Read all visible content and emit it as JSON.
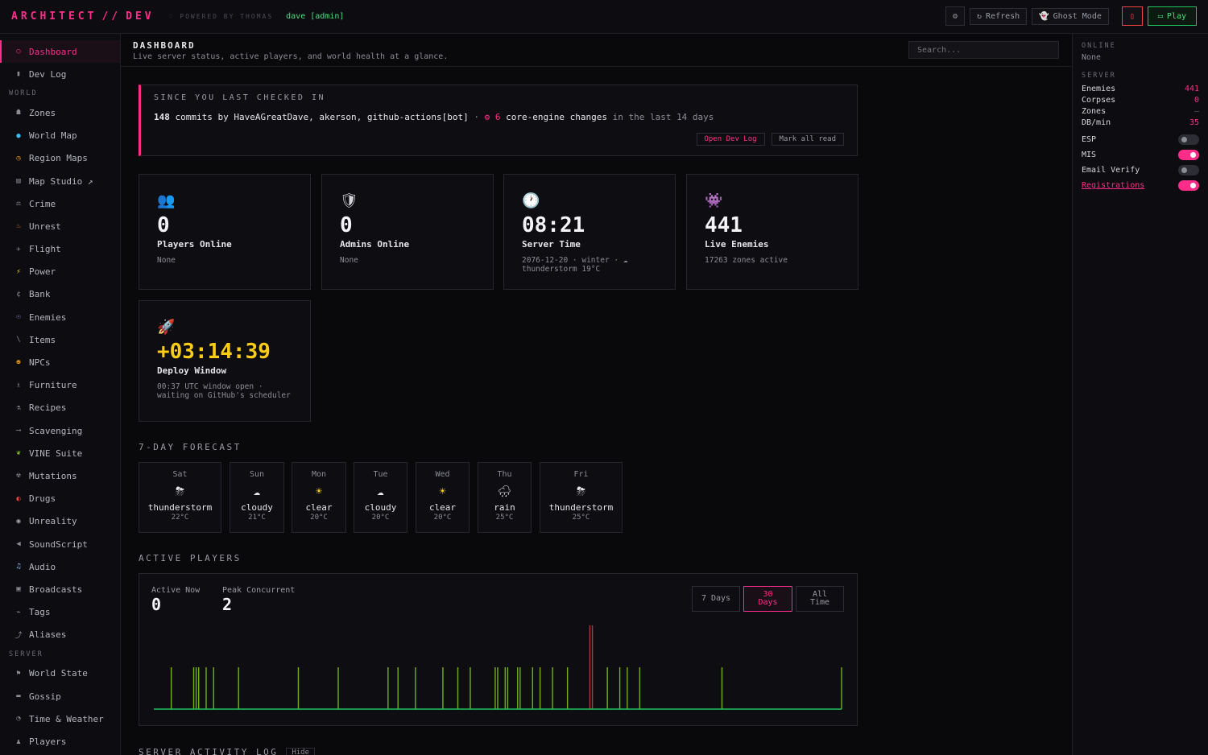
{
  "topbar": {
    "brand": "ARCHITECT",
    "brand_sep": "//",
    "brand_dev": "DEV",
    "powered": "POWERED BY THOMAS",
    "user": "dave [admin]",
    "refresh_label": "Refresh",
    "ghost_label": "Ghost Mode",
    "play_label": "Play"
  },
  "sidebar": {
    "top_items": [
      {
        "label": "Dashboard",
        "icon": "circle-icon"
      },
      {
        "label": "Dev Log",
        "icon": "book-icon"
      }
    ],
    "world_title": "WORLD",
    "world_items": [
      {
        "label": "Zones",
        "icon": "zones-icon"
      },
      {
        "label": "World Map",
        "icon": "globe-icon"
      },
      {
        "label": "Region Maps",
        "icon": "compass-icon"
      },
      {
        "label": "Map Studio ↗",
        "icon": "studio-icon"
      },
      {
        "label": "Crime",
        "icon": "crime-icon"
      },
      {
        "label": "Unrest",
        "icon": "fire-icon"
      },
      {
        "label": "Flight",
        "icon": "plane-icon"
      },
      {
        "label": "Power",
        "icon": "bolt-icon"
      },
      {
        "label": "Bank",
        "icon": "currency-icon"
      },
      {
        "label": "Enemies",
        "icon": "alien-icon"
      },
      {
        "label": "Items",
        "icon": "slash-icon"
      },
      {
        "label": "NPCs",
        "icon": "face-icon"
      },
      {
        "label": "Furniture",
        "icon": "chair-icon"
      },
      {
        "label": "Recipes",
        "icon": "recipe-icon"
      },
      {
        "label": "Scavenging",
        "icon": "arrow-icon"
      },
      {
        "label": "VINE Suite",
        "icon": "vine-icon"
      },
      {
        "label": "Mutations",
        "icon": "radiation-icon"
      },
      {
        "label": "Drugs",
        "icon": "pill-icon"
      },
      {
        "label": "Unreality",
        "icon": "orb-icon"
      },
      {
        "label": "SoundScript",
        "icon": "speaker-icon"
      },
      {
        "label": "Audio",
        "icon": "music-icon"
      },
      {
        "label": "Broadcasts",
        "icon": "radio-icon"
      },
      {
        "label": "Tags",
        "icon": "tag-icon"
      },
      {
        "label": "Aliases",
        "icon": "alias-icon"
      }
    ],
    "server_title": "SERVER",
    "server_items": [
      {
        "label": "World State",
        "icon": "flag-icon"
      },
      {
        "label": "Gossip",
        "icon": "chat-icon"
      },
      {
        "label": "Time & Weather",
        "icon": "clock-icon"
      },
      {
        "label": "Players",
        "icon": "players-icon"
      }
    ]
  },
  "header": {
    "title": "DASHBOARD",
    "subtitle": "Live server status, active players, and world health at a glance.",
    "search_placeholder": "Search..."
  },
  "since": {
    "title": "SINCE YOU LAST CHECKED IN",
    "commits": "148",
    "commits_word": "commits",
    "by": "by HaveAGreatDave, akerson, github-actions[bot]",
    "dot": "·",
    "gear": "⚙",
    "core_count": "6",
    "core_label": "core-engine changes",
    "period": "in the last 14 days",
    "open_label": "Open Dev Log",
    "mark_label": "Mark all read"
  },
  "cards": [
    {
      "icon": "👥",
      "value": "0",
      "label": "Players Online",
      "note": "None"
    },
    {
      "icon": "🛡",
      "value": "0",
      "label": "Admins Online",
      "note": "None"
    },
    {
      "icon": "🕐",
      "value": "08:21",
      "label": "Server Time",
      "note": "2076-12-20 · winter · ☁ thunderstorm 19°C"
    },
    {
      "icon": "👾",
      "value": "441",
      "label": "Live Enemies",
      "note": "17263 zones active"
    }
  ],
  "deploy": {
    "icon": "🚀",
    "value": "+03:14:39",
    "label": "Deploy Window",
    "note": "00:37 UTC window open · waiting on GitHub's scheduler"
  },
  "forecast": {
    "title": "7-DAY FORECAST",
    "days": [
      {
        "day": "Sat",
        "icon": "⛈",
        "cond": "thunderstorm",
        "temp": "22°C"
      },
      {
        "day": "Sun",
        "icon": "☁",
        "cond": "cloudy",
        "temp": "21°C"
      },
      {
        "day": "Mon",
        "icon": "☀",
        "cond": "clear",
        "temp": "20°C"
      },
      {
        "day": "Tue",
        "icon": "☁",
        "cond": "cloudy",
        "temp": "20°C"
      },
      {
        "day": "Wed",
        "icon": "☀",
        "cond": "clear",
        "temp": "20°C"
      },
      {
        "day": "Thu",
        "icon": "🌧",
        "cond": "rain",
        "temp": "25°C"
      },
      {
        "day": "Fri",
        "icon": "⛈",
        "cond": "thunderstorm",
        "temp": "25°C"
      }
    ]
  },
  "players": {
    "title": "ACTIVE PLAYERS",
    "active_label": "Active Now",
    "active_value": "0",
    "peak_label": "Peak Concurrent",
    "peak_value": "2",
    "range_7": "7 Days",
    "range_30": "30 Days",
    "range_all": "All Time"
  },
  "log": {
    "title": "SERVER ACTIVITY LOG",
    "hide_label": "Hide"
  },
  "right": {
    "online_title": "ONLINE",
    "online_value": "None",
    "server_title": "SERVER",
    "stats": [
      {
        "label": "Enemies",
        "value": "441"
      },
      {
        "label": "Corpses",
        "value": "0"
      },
      {
        "label": "Zones",
        "value": "—"
      },
      {
        "label": "DB/min",
        "value": "35"
      }
    ],
    "toggles": [
      {
        "label": "ESP",
        "on": false
      },
      {
        "label": "MIS",
        "on": true
      },
      {
        "label": "Email Verify",
        "on": false
      },
      {
        "label": "Registrations",
        "on": true
      }
    ]
  },
  "colors": {
    "accent": "#ff2d8a",
    "success": "#4ade80",
    "warning": "#facc15"
  },
  "chart_data": {
    "type": "bar",
    "title": "",
    "xlabel": "",
    "ylabel": "",
    "ylim": [
      0,
      2
    ],
    "values": [
      0,
      0,
      0,
      0,
      0,
      0,
      0,
      1,
      0,
      0,
      0,
      0,
      0,
      0,
      0,
      0,
      1,
      1,
      1,
      0,
      0,
      1,
      0,
      0,
      1,
      0,
      0,
      0,
      0,
      0,
      0,
      0,
      0,
      0,
      1,
      0,
      0,
      0,
      0,
      0,
      0,
      0,
      0,
      0,
      0,
      0,
      0,
      0,
      0,
      0,
      0,
      0,
      0,
      0,
      0,
      0,
      0,
      0,
      1,
      0,
      0,
      0,
      0,
      0,
      0,
      0,
      0,
      0,
      0,
      0,
      0,
      0,
      0,
      0,
      1,
      0,
      0,
      0,
      0,
      0,
      0,
      0,
      0,
      0,
      0,
      0,
      0,
      0,
      0,
      0,
      0,
      0,
      0,
      0,
      1,
      0,
      0,
      0,
      1,
      0,
      0,
      0,
      0,
      0,
      0,
      1,
      0,
      0,
      0,
      0,
      0,
      0,
      0,
      0,
      0,
      0,
      1,
      0,
      0,
      0,
      0,
      0,
      1,
      0,
      0,
      0,
      0,
      1,
      0,
      0,
      0,
      0,
      0,
      0,
      0,
      0,
      0,
      1,
      1,
      0,
      0,
      1,
      1,
      0,
      0,
      0,
      1,
      1,
      0,
      0,
      0,
      0,
      1,
      0,
      0,
      1,
      0,
      0,
      0,
      0,
      1,
      0,
      0,
      0,
      0,
      0,
      1,
      0,
      0,
      0,
      0,
      0,
      0,
      0,
      0,
      2,
      2,
      0,
      0,
      0,
      0,
      0,
      1,
      0,
      0,
      0,
      0,
      1,
      0,
      0,
      1,
      0,
      0,
      0,
      0,
      1,
      0,
      0,
      0,
      0,
      0,
      0,
      0,
      0,
      0,
      0,
      0,
      0,
      0,
      0,
      0,
      0,
      0,
      0,
      0,
      0,
      0,
      0,
      0,
      0,
      0,
      0,
      0,
      0,
      0,
      0,
      0,
      0,
      1,
      0,
      0,
      0,
      0,
      0,
      0,
      0,
      0,
      0,
      0,
      0,
      0,
      0,
      0,
      0,
      0,
      0,
      0,
      0,
      0,
      0,
      0,
      0,
      0,
      0,
      0,
      0,
      0,
      0,
      0,
      0,
      0,
      0,
      0,
      0,
      0,
      0,
      0,
      0,
      0,
      0,
      0,
      0,
      0,
      0,
      0,
      0,
      1
    ],
    "bar_color": "#84cc16",
    "peak_color": "#ef4444",
    "base_color": "#22c55e"
  }
}
